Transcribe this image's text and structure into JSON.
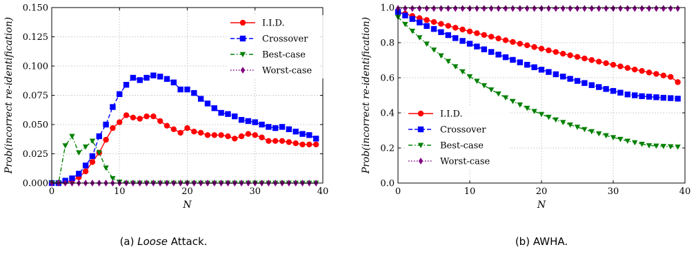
{
  "chart_data": [
    {
      "type": "line",
      "caption": {
        "label": "(a)",
        "emph": "Loose",
        "rest": "Attack."
      },
      "xlabel": "N",
      "ylabel": "Prob(incorrect re-identification)",
      "xlim": [
        0,
        40
      ],
      "ylim": [
        0,
        0.15
      ],
      "xticks": [
        0,
        10,
        20,
        30,
        40
      ],
      "yticks": [
        0.0,
        0.025,
        0.05,
        0.075,
        0.1,
        0.125,
        0.15
      ],
      "ytick_labels": [
        "0.000",
        "0.025",
        "0.050",
        "0.075",
        "0.100",
        "0.125",
        "0.150"
      ],
      "xtick_labels": [
        "0",
        "10",
        "20",
        "30",
        "40"
      ],
      "grid": true,
      "legend_position": "top-right",
      "x": [
        0,
        1,
        2,
        3,
        4,
        5,
        6,
        7,
        8,
        9,
        10,
        11,
        12,
        13,
        14,
        15,
        16,
        17,
        18,
        19,
        20,
        21,
        22,
        23,
        24,
        25,
        26,
        27,
        28,
        29,
        30,
        31,
        32,
        33,
        34,
        35,
        36,
        37,
        38,
        39
      ],
      "series": [
        {
          "name": "I.I.D.",
          "color": "#ff0000",
          "marker": "circle",
          "dash": "solid",
          "values": [
            0,
            0,
            0.001,
            0.002,
            0.005,
            0.01,
            0.018,
            0.026,
            0.037,
            0.047,
            0.052,
            0.058,
            0.056,
            0.055,
            0.057,
            0.057,
            0.053,
            0.049,
            0.046,
            0.043,
            0.047,
            0.044,
            0.043,
            0.041,
            0.041,
            0.041,
            0.04,
            0.038,
            0.04,
            0.042,
            0.041,
            0.039,
            0.036,
            0.036,
            0.036,
            0.035,
            0.034,
            0.033,
            0.033,
            0.033
          ]
        },
        {
          "name": "Crossover",
          "color": "#0000ff",
          "marker": "square",
          "dash": "dashed",
          "values": [
            0,
            0,
            0.002,
            0.004,
            0.008,
            0.015,
            0.023,
            0.04,
            0.05,
            0.065,
            0.076,
            0.084,
            0.09,
            0.088,
            0.09,
            0.092,
            0.091,
            0.089,
            0.086,
            0.08,
            0.08,
            0.077,
            0.072,
            0.068,
            0.064,
            0.06,
            0.059,
            0.057,
            0.054,
            0.053,
            0.052,
            0.05,
            0.048,
            0.047,
            0.048,
            0.046,
            0.044,
            0.042,
            0.041,
            0.038
          ]
        },
        {
          "name": "Best-case",
          "color": "#008000",
          "marker": "triangle-down",
          "dash": "dashdot",
          "values": [
            0,
            0,
            0.032,
            0.04,
            0.026,
            0.031,
            0.036,
            0.026,
            0.013,
            0.004,
            0.001,
            0,
            0,
            0,
            0,
            0,
            0,
            0,
            0,
            0,
            0,
            0,
            0,
            0,
            0,
            0,
            0,
            0,
            0,
            0,
            0,
            0,
            0,
            0,
            0,
            0,
            0,
            0,
            0,
            0
          ]
        },
        {
          "name": "Worst-case",
          "color": "#800080",
          "marker": "diamond",
          "dash": "dotted",
          "values": [
            0,
            0,
            0,
            0,
            0,
            0,
            0,
            0,
            0,
            0,
            0,
            0,
            0,
            0,
            0,
            0,
            0,
            0,
            0,
            0,
            0,
            0,
            0,
            0,
            0,
            0,
            0,
            0,
            0,
            0,
            0,
            0,
            0,
            0,
            0,
            0,
            0,
            0,
            0,
            0
          ]
        }
      ]
    },
    {
      "type": "line",
      "caption": {
        "label": "(b)",
        "emph": "",
        "rest": "AWHA."
      },
      "xlabel": "N",
      "ylabel": "Prob(incorrect re-identification)",
      "xlim": [
        0,
        40
      ],
      "ylim": [
        0,
        1.0
      ],
      "xticks": [
        0,
        10,
        20,
        30,
        40
      ],
      "yticks": [
        0.0,
        0.2,
        0.4,
        0.6,
        0.8,
        1.0
      ],
      "ytick_labels": [
        "0.0",
        "0.2",
        "0.4",
        "0.6",
        "0.8",
        "1.0"
      ],
      "xtick_labels": [
        "0",
        "10",
        "20",
        "30",
        "40"
      ],
      "grid": true,
      "legend_position": "bottom-left",
      "x": [
        0,
        1,
        2,
        3,
        4,
        5,
        6,
        7,
        8,
        9,
        10,
        11,
        12,
        13,
        14,
        15,
        16,
        17,
        18,
        19,
        20,
        21,
        22,
        23,
        24,
        25,
        26,
        27,
        28,
        29,
        30,
        31,
        32,
        33,
        34,
        35,
        36,
        37,
        38,
        39
      ],
      "series": [
        {
          "name": "I.I.D.",
          "color": "#ff0000",
          "marker": "circle",
          "dash": "solid",
          "values": [
            0.975,
            0.965,
            0.952,
            0.94,
            0.929,
            0.918,
            0.907,
            0.896,
            0.885,
            0.875,
            0.864,
            0.854,
            0.844,
            0.834,
            0.824,
            0.814,
            0.804,
            0.794,
            0.785,
            0.775,
            0.766,
            0.756,
            0.747,
            0.737,
            0.728,
            0.719,
            0.71,
            0.701,
            0.692,
            0.683,
            0.674,
            0.665,
            0.656,
            0.647,
            0.639,
            0.63,
            0.622,
            0.613,
            0.605,
            0.575
          ]
        },
        {
          "name": "Crossover",
          "color": "#0000ff",
          "marker": "square",
          "dash": "dashed",
          "values": [
            0.975,
            0.955,
            0.935,
            0.915,
            0.895,
            0.878,
            0.86,
            0.843,
            0.826,
            0.81,
            0.794,
            0.778,
            0.762,
            0.747,
            0.732,
            0.717,
            0.702,
            0.688,
            0.674,
            0.66,
            0.646,
            0.633,
            0.62,
            0.607,
            0.594,
            0.582,
            0.57,
            0.558,
            0.547,
            0.536,
            0.525,
            0.515,
            0.505,
            0.5,
            0.495,
            0.492,
            0.489,
            0.486,
            0.484,
            0.481
          ]
        },
        {
          "name": "Best-case",
          "color": "#008000",
          "marker": "triangle-down",
          "dash": "dashdot",
          "values": [
            0.945,
            0.905,
            0.866,
            0.829,
            0.793,
            0.759,
            0.726,
            0.694,
            0.664,
            0.635,
            0.607,
            0.581,
            0.556,
            0.532,
            0.509,
            0.487,
            0.466,
            0.446,
            0.427,
            0.409,
            0.392,
            0.376,
            0.361,
            0.346,
            0.332,
            0.319,
            0.306,
            0.294,
            0.282,
            0.271,
            0.26,
            0.25,
            0.24,
            0.231,
            0.222,
            0.214,
            0.212,
            0.21,
            0.208,
            0.206
          ]
        },
        {
          "name": "Worst-case",
          "color": "#800080",
          "marker": "diamond",
          "dash": "dotted",
          "values": [
            0.995,
            0.995,
            0.995,
            0.995,
            0.995,
            0.995,
            0.995,
            0.995,
            0.995,
            0.995,
            0.995,
            0.995,
            0.995,
            0.995,
            0.995,
            0.995,
            0.995,
            0.995,
            0.995,
            0.995,
            0.995,
            0.995,
            0.995,
            0.995,
            0.995,
            0.995,
            0.995,
            0.995,
            0.995,
            0.995,
            0.995,
            0.995,
            0.995,
            0.995,
            0.995,
            0.995,
            0.995,
            0.995,
            0.995,
            0.995
          ]
        }
      ]
    }
  ]
}
